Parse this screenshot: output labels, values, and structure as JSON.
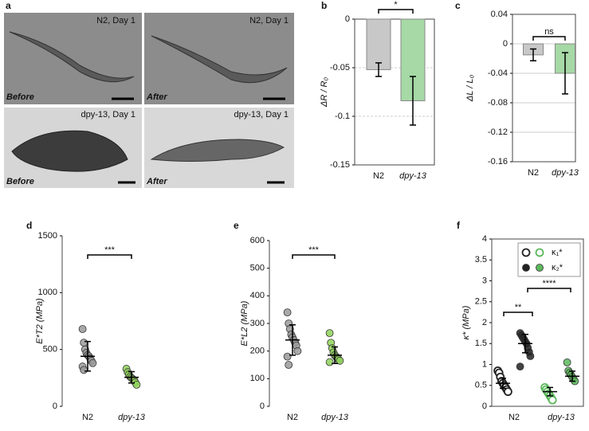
{
  "panel_a": {
    "label": "a",
    "images": [
      {
        "caption": "N2, Day 1",
        "state": "Before"
      },
      {
        "caption": "N2, Day 1",
        "state": "After"
      },
      {
        "caption": "dpy-13, Day 1",
        "state": "Before"
      },
      {
        "caption": "dpy-13, Day 1",
        "state": "After"
      }
    ]
  },
  "chart_data": [
    {
      "type": "bar",
      "panel": "b",
      "ylabel": "ΔR / R₀",
      "categories": [
        "N2",
        "dpy-13"
      ],
      "values": [
        -0.052,
        -0.084
      ],
      "errors": [
        0.007,
        0.025
      ],
      "colors": [
        "#c8c8c8",
        "#a6d9a6"
      ],
      "ylim": [
        -0.15,
        0
      ],
      "yticks": [
        -0.15,
        -0.1,
        -0.05,
        0
      ],
      "grid": true,
      "annotations": [
        "*"
      ]
    },
    {
      "type": "bar",
      "panel": "c",
      "ylabel": "ΔL / L₀",
      "categories": [
        "N2",
        "dpy-13"
      ],
      "values": [
        -0.015,
        -0.04
      ],
      "errors": [
        0.008,
        0.028
      ],
      "colors": [
        "#c8c8c8",
        "#a6d9a6"
      ],
      "ylim": [
        -0.16,
        0.04
      ],
      "yticks": [
        -0.16,
        -0.12,
        -0.08,
        -0.04,
        0,
        0.04
      ],
      "grid": true,
      "annotations": [
        "ns"
      ]
    },
    {
      "type": "dot",
      "panel": "d",
      "ylabel": "E*T2 (MPa)",
      "categories": [
        "N2",
        "dpy-13"
      ],
      "ylim": [
        0,
        1500
      ],
      "yticks": [
        0,
        500,
        1000,
        1500
      ],
      "annotations": [
        "***"
      ],
      "series": [
        {
          "colors": [
            "#9a9a9a",
            "#8fd45a"
          ],
          "filled": true,
          "values": [
            [
              680,
              560,
              500,
              470,
              450,
              440,
              420,
              400,
              380,
              350,
              320
            ],
            [
              330,
              300,
              280,
              260,
              250,
              240,
              230,
              210,
              190
            ]
          ],
          "means": [
            440,
            255
          ],
          "errors": [
            130,
            50
          ]
        }
      ]
    },
    {
      "type": "dot",
      "panel": "e",
      "ylabel": "E*L2 (MPa)",
      "categories": [
        "N2",
        "dpy-13"
      ],
      "ylim": [
        0,
        600
      ],
      "yticks": [
        0,
        100,
        200,
        300,
        400,
        500,
        600
      ],
      "annotations": [
        "***"
      ],
      "series": [
        {
          "colors": [
            "#9a9a9a",
            "#8fd45a"
          ],
          "filled": true,
          "values": [
            [
              340,
              300,
              280,
              260,
              250,
              240,
              230,
              220,
              200,
              180,
              150
            ],
            [
              265,
              230,
              210,
              195,
              185,
              180,
              175,
              170,
              165,
              160
            ]
          ],
          "means": [
            240,
            185
          ],
          "errors": [
            55,
            30
          ]
        }
      ]
    },
    {
      "type": "dot",
      "panel": "f",
      "ylabel": "κ* (MPa)",
      "categories": [
        "N2",
        "dpy-13"
      ],
      "ylim": [
        0,
        4
      ],
      "yticks": [
        0,
        0.5,
        1,
        1.5,
        2,
        2.5,
        3,
        3.5,
        4
      ],
      "annotations": [
        "**",
        "****"
      ],
      "legend": true,
      "series": [
        {
          "name": "κ₁*",
          "colors": [
            "#222222",
            "#5cb85c"
          ],
          "filled": false,
          "values": [
            [
              0.85,
              0.8,
              0.7,
              0.6,
              0.55,
              0.5,
              0.45,
              0.4,
              0.35
            ],
            [
              0.45,
              0.4,
              0.35,
              0.3,
              0.25,
              0.2,
              0.15
            ]
          ],
          "means": [
            0.55,
            0.35
          ],
          "errors": [
            0.12,
            0.1
          ]
        },
        {
          "name": "κ₂*",
          "colors": [
            "#222222",
            "#5cb85c"
          ],
          "filled": true,
          "values": [
            [
              1.75,
              1.7,
              1.65,
              1.6,
              1.55,
              1.5,
              1.4,
              1.3,
              1.2,
              0.95
            ],
            [
              1.05,
              0.85,
              0.8,
              0.75,
              0.7,
              0.65,
              0.6
            ]
          ],
          "means": [
            1.5,
            0.72
          ],
          "errors": [
            0.22,
            0.12
          ]
        }
      ]
    }
  ]
}
